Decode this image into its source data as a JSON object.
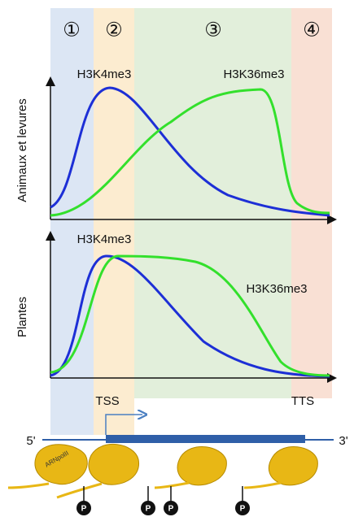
{
  "zones": [
    "①",
    "②",
    "③",
    "④"
  ],
  "panels": [
    {
      "label": "Animaux et levures",
      "marks": [
        "H3K4me3",
        "H3K36me3"
      ]
    },
    {
      "label": "Plantes",
      "marks": [
        "H3K4me3",
        "H3K36me3"
      ]
    }
  ],
  "gene": {
    "tss": "TSS",
    "tts": "TTS",
    "five_prime": "5'",
    "three_prime": "3'",
    "polymerase": "ARNpolII",
    "phospho": [
      "P",
      "P",
      "P",
      "P"
    ]
  }
}
